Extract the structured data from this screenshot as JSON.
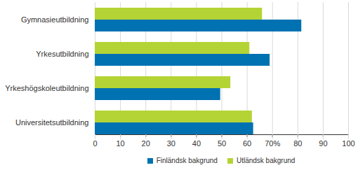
{
  "chart_data": {
    "type": "bar",
    "orientation": "horizontal",
    "categories": [
      "Gymnasieutbildning",
      "Yrkesutbildning",
      "Yrkeshögskoleutbildning",
      "Universitetsutbildning"
    ],
    "series": [
      {
        "name": "Finländsk bakgrund",
        "color": "#0072b2",
        "values": [
          81.5,
          69,
          49.5,
          62.5
        ]
      },
      {
        "name": "Utländsk bakgrund",
        "color": "#b4d435",
        "values": [
          66,
          61,
          53.5,
          62
        ]
      }
    ],
    "xlim": [
      0,
      100
    ],
    "xticks": [
      0,
      10,
      20,
      30,
      40,
      50,
      60,
      {
        "value": 70,
        "label": "70%"
      },
      80,
      90,
      100
    ],
    "grid": true,
    "legend": "bottom"
  }
}
